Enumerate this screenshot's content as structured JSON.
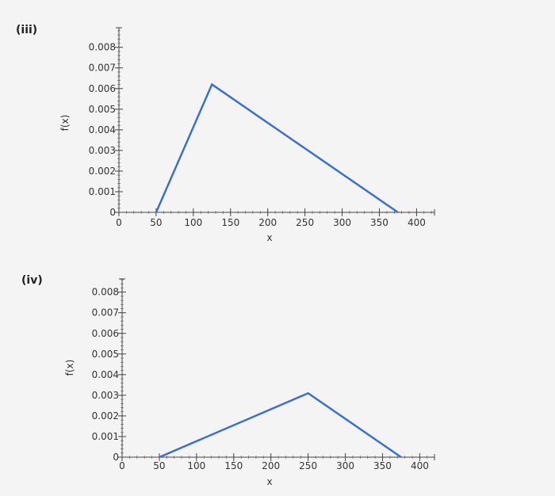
{
  "chart_data": [
    {
      "panel_label": "(iii)",
      "type": "line",
      "xlabel": "x",
      "ylabel": "f(x)",
      "xlim": [
        0,
        420
      ],
      "ylim": [
        0,
        0.009
      ],
      "x_ticks": [
        "0",
        "50",
        "100",
        "150",
        "200",
        "250",
        "300",
        "350",
        "400"
      ],
      "y_ticks": [
        "0",
        "0.001",
        "0.002",
        "0.003",
        "0.004",
        "0.005",
        "0.006",
        "0.007",
        "0.008"
      ],
      "series": [
        {
          "x": [
            50,
            125,
            375
          ],
          "y": [
            0,
            0.0062,
            0
          ],
          "color": "#3a6fd8"
        }
      ]
    },
    {
      "panel_label": "(iv)",
      "type": "line",
      "xlabel": "x",
      "ylabel": "f(x)",
      "xlim": [
        0,
        420
      ],
      "ylim": [
        0,
        0.009
      ],
      "x_ticks": [
        "0",
        "50",
        "100",
        "150",
        "200",
        "250",
        "300",
        "350",
        "400"
      ],
      "y_ticks": [
        "0",
        "0.001",
        "0.002",
        "0.003",
        "0.004",
        "0.005",
        "0.006",
        "0.007",
        "0.008"
      ],
      "series": [
        {
          "x": [
            50,
            250,
            375
          ],
          "y": [
            0,
            0.0031,
            0
          ],
          "color": "#3a6fd8"
        }
      ]
    }
  ]
}
